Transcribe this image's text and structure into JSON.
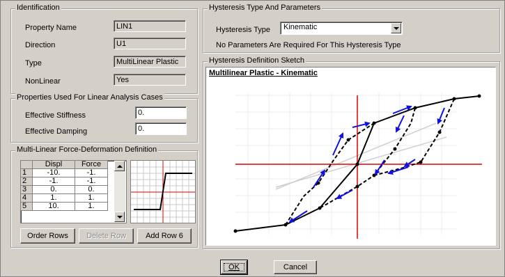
{
  "identification": {
    "title": "Identification",
    "property_name_label": "Property Name",
    "property_name_value": "LIN1",
    "direction_label": "Direction",
    "direction_value": "U1",
    "type_label": "Type",
    "type_value": "MultiLinear Plastic",
    "nonlinear_label": "NonLinear",
    "nonlinear_value": "Yes"
  },
  "linear": {
    "title": "Properties Used For Linear Analysis Cases",
    "eff_stiffness_label": "Effective Stiffness",
    "eff_stiffness_value": "0.",
    "eff_damping_label": "Effective Damping",
    "eff_damping_value": "0."
  },
  "multilinear": {
    "title": "Multi-Linear Force-Deformation Definition",
    "columns": [
      "Displ",
      "Force"
    ],
    "rows": [
      {
        "n": "1",
        "displ": "-10.",
        "force": "-1."
      },
      {
        "n": "2",
        "displ": "-1.",
        "force": "-1."
      },
      {
        "n": "3",
        "displ": "0.",
        "force": "0."
      },
      {
        "n": "4",
        "displ": "1.",
        "force": "1."
      },
      {
        "n": "5",
        "displ": "10.",
        "force": "1."
      }
    ],
    "order_rows": "Order Rows",
    "delete_row": "Delete Row",
    "add_row": "Add Row 6"
  },
  "hysteresis": {
    "title": "Hysteresis Type And Parameters",
    "type_label": "Hysteresis Type",
    "type_value": "Kinematic",
    "note": "No Parameters Are Required For This Hysteresis Type"
  },
  "sketch": {
    "group_title": "Hysteresis Definition Sketch",
    "heading": "Multilinear Plastic - Kinematic"
  },
  "footer": {
    "ok": "OK",
    "cancel": "Cancel"
  },
  "colors": {
    "axis_red": "#e00000",
    "arrow_blue": "#1010e0",
    "curve_black": "#000000",
    "guide_gray": "#c8c8c8"
  }
}
